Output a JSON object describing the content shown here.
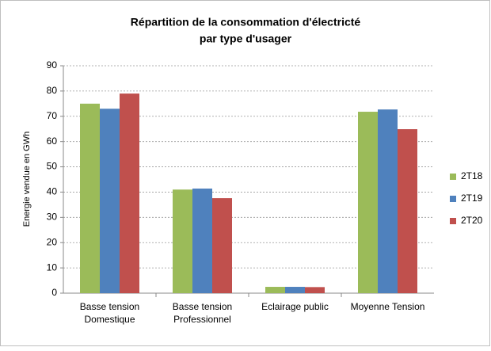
{
  "chart_data": {
    "type": "bar",
    "title": [
      "Répartition de la consommation d'électricté",
      "par type d'usager"
    ],
    "y_label": "Energie vendue en GWh",
    "categories": [
      [
        "Basse tension",
        "Domestique"
      ],
      [
        "Basse tension",
        "Professionnel"
      ],
      [
        "Eclairage public"
      ],
      [
        "Moyenne Tension"
      ]
    ],
    "series": [
      {
        "name": "2T18",
        "color": "#9bbb59",
        "values": [
          75,
          41,
          2.5,
          71.8
        ]
      },
      {
        "name": "2T19",
        "color": "#4f81bd",
        "values": [
          73,
          41.4,
          2.5,
          72.7
        ]
      },
      {
        "name": "2T20",
        "color": "#c0504d",
        "values": [
          79,
          37.6,
          2.4,
          64.9
        ]
      }
    ],
    "ylim": [
      0,
      90
    ],
    "yticks": [
      0,
      10,
      20,
      30,
      40,
      50,
      60,
      70,
      80,
      90
    ],
    "grid": true,
    "legend": "right"
  }
}
